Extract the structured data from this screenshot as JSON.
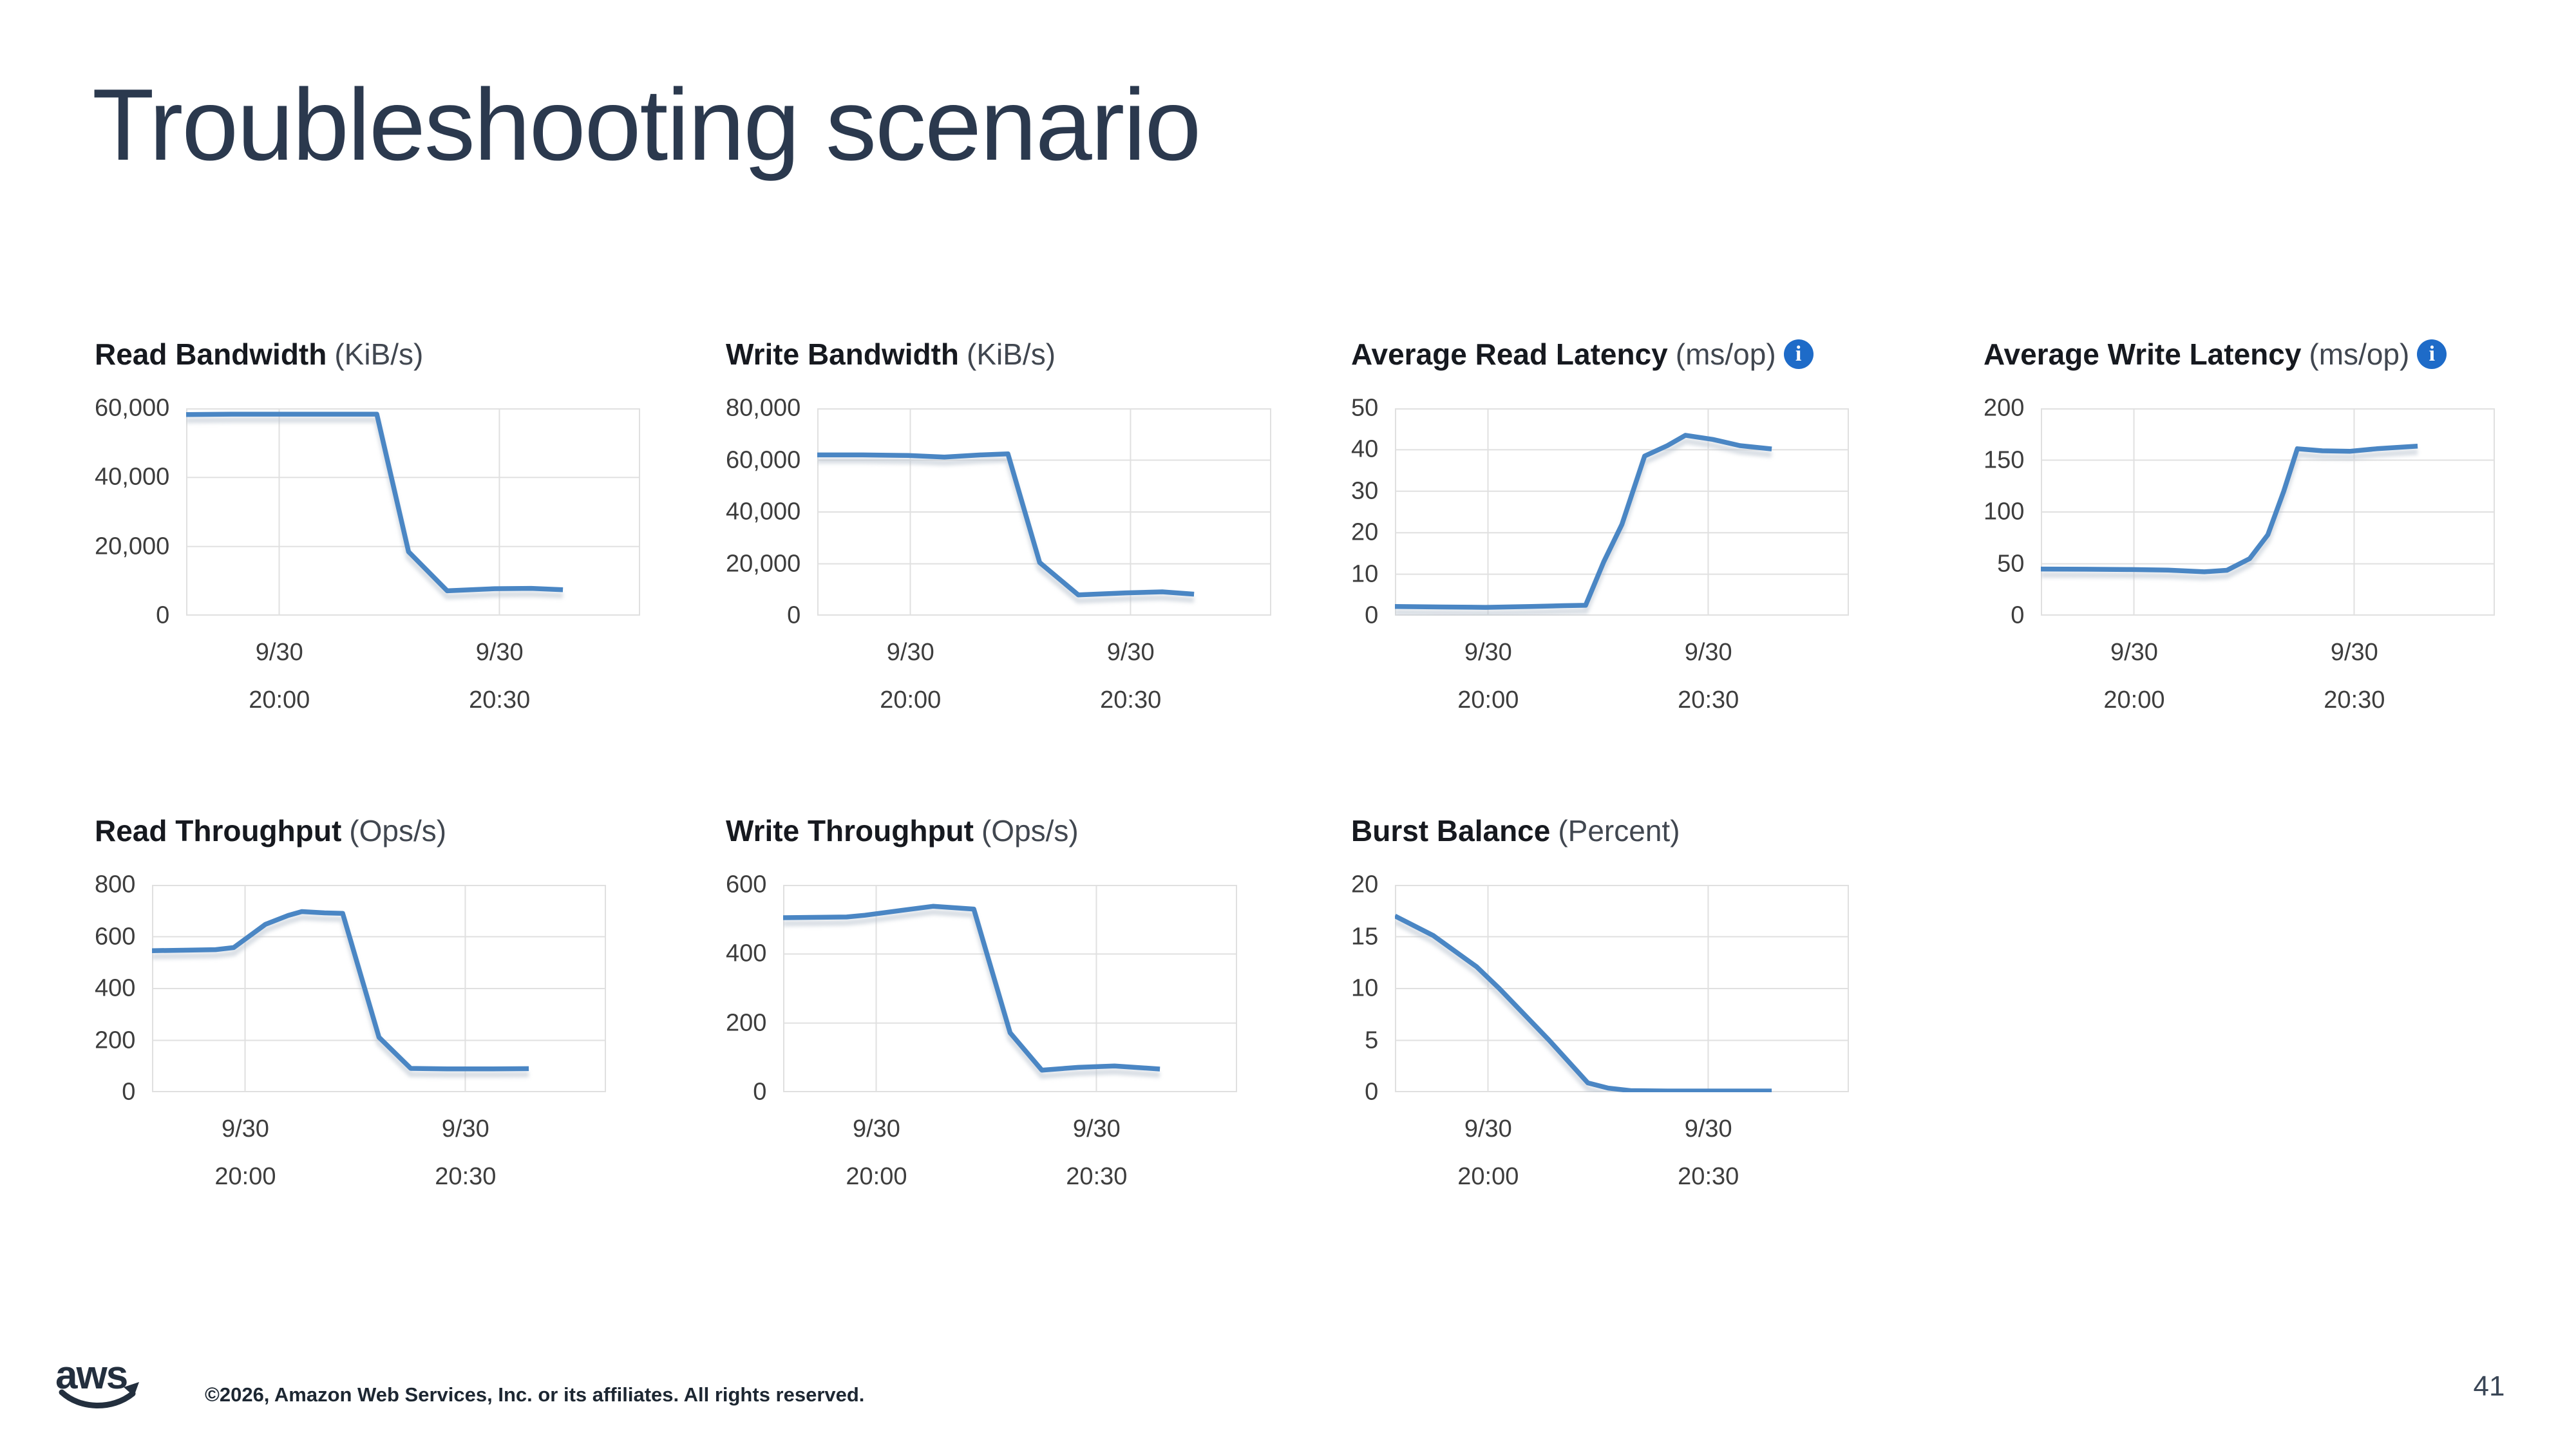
{
  "slide": {
    "title": "Troubleshooting scenario",
    "page_number": "41",
    "footer_copyright": "©2026, Amazon Web Services, Inc. or its affiliates. All rights reserved.",
    "logo_text": "aws"
  },
  "colors": {
    "line": "#4a86c4",
    "line_shadow": "#b9c3cf",
    "grid": "#e0e0e0",
    "chart_title": "#16191f",
    "chart_unit": "#414750",
    "axis_text": "#3d3d3d",
    "info_icon_bg": "#1e6bc8",
    "slide_title": "#2b394e",
    "brand_navy": "#232f3e"
  },
  "icons": {
    "info": "i"
  },
  "chart_data": [
    {
      "type": "line",
      "title": "Read Bandwidth",
      "unit": "(KiB/s)",
      "has_info_icon": false,
      "ylim": [
        0,
        60000
      ],
      "yticks": [
        0,
        20000,
        40000,
        60000
      ],
      "ytick_labels": [
        "0",
        "20,000",
        "40,000",
        "60,000"
      ],
      "xticks": [
        {
          "pos": 0.205,
          "line1": "9/30",
          "line2": "20:00"
        },
        {
          "pos": 0.69,
          "line1": "9/30",
          "line2": "20:30"
        }
      ],
      "grid": true,
      "legend": "none",
      "points": [
        [
          0,
          58200
        ],
        [
          0.1,
          58300
        ],
        [
          0.2,
          58300
        ],
        [
          0.3,
          58300
        ],
        [
          0.42,
          58300
        ],
        [
          0.49,
          18500
        ],
        [
          0.575,
          7200
        ],
        [
          0.68,
          7800
        ],
        [
          0.76,
          7900
        ],
        [
          0.83,
          7500
        ]
      ]
    },
    {
      "type": "line",
      "title": "Write Bandwidth",
      "unit": "(KiB/s)",
      "has_info_icon": false,
      "ylim": [
        0,
        80000
      ],
      "yticks": [
        0,
        20000,
        40000,
        60000,
        80000
      ],
      "ytick_labels": [
        "0",
        "20,000",
        "40,000",
        "60,000",
        "80,000"
      ],
      "xticks": [
        {
          "pos": 0.205,
          "line1": "9/30",
          "line2": "20:00"
        },
        {
          "pos": 0.69,
          "line1": "9/30",
          "line2": "20:30"
        }
      ],
      "grid": true,
      "legend": "none",
      "points": [
        [
          0,
          62000
        ],
        [
          0.1,
          62000
        ],
        [
          0.2,
          61800
        ],
        [
          0.28,
          61200
        ],
        [
          0.36,
          62000
        ],
        [
          0.42,
          62400
        ],
        [
          0.49,
          20500
        ],
        [
          0.575,
          8000
        ],
        [
          0.68,
          8800
        ],
        [
          0.76,
          9200
        ],
        [
          0.83,
          8300
        ]
      ]
    },
    {
      "type": "line",
      "title": "Average Read Latency",
      "unit": "(ms/op)",
      "has_info_icon": true,
      "ylim": [
        0,
        50
      ],
      "yticks": [
        0,
        10,
        20,
        30,
        40,
        50
      ],
      "ytick_labels": [
        "0",
        "10",
        "20",
        "30",
        "40",
        "50"
      ],
      "xticks": [
        {
          "pos": 0.205,
          "line1": "9/30",
          "line2": "20:00"
        },
        {
          "pos": 0.69,
          "line1": "9/30",
          "line2": "20:30"
        }
      ],
      "grid": true,
      "legend": "none",
      "points": [
        [
          0,
          2.2
        ],
        [
          0.1,
          2.1
        ],
        [
          0.2,
          2.0
        ],
        [
          0.3,
          2.2
        ],
        [
          0.37,
          2.4
        ],
        [
          0.42,
          2.5
        ],
        [
          0.46,
          13
        ],
        [
          0.5,
          22
        ],
        [
          0.55,
          38.5
        ],
        [
          0.6,
          41
        ],
        [
          0.64,
          43.5
        ],
        [
          0.7,
          42.5
        ],
        [
          0.76,
          41
        ],
        [
          0.83,
          40.2
        ]
      ]
    },
    {
      "type": "line",
      "title": "Average Write Latency",
      "unit": "(ms/op)",
      "has_info_icon": true,
      "ylim": [
        0,
        200
      ],
      "yticks": [
        0,
        50,
        100,
        150,
        200
      ],
      "ytick_labels": [
        "0",
        "50",
        "100",
        "150",
        "200"
      ],
      "xticks": [
        {
          "pos": 0.205,
          "line1": "9/30",
          "line2": "20:00"
        },
        {
          "pos": 0.69,
          "line1": "9/30",
          "line2": "20:30"
        }
      ],
      "grid": true,
      "legend": "none",
      "points": [
        [
          0,
          45
        ],
        [
          0.1,
          44.8
        ],
        [
          0.2,
          44.5
        ],
        [
          0.28,
          44
        ],
        [
          0.36,
          42.3
        ],
        [
          0.41,
          43.8
        ],
        [
          0.46,
          55
        ],
        [
          0.5,
          78
        ],
        [
          0.535,
          120
        ],
        [
          0.565,
          161
        ],
        [
          0.62,
          159
        ],
        [
          0.68,
          158.5
        ],
        [
          0.74,
          161
        ],
        [
          0.83,
          163.5
        ]
      ]
    },
    {
      "type": "line",
      "title": "Read Throughput",
      "unit": "(Ops/s)",
      "has_info_icon": false,
      "ylim": [
        0,
        800
      ],
      "yticks": [
        0,
        200,
        400,
        600,
        800
      ],
      "ytick_labels": [
        "0",
        "200",
        "400",
        "600",
        "800"
      ],
      "xticks": [
        {
          "pos": 0.205,
          "line1": "9/30",
          "line2": "20:00"
        },
        {
          "pos": 0.69,
          "line1": "9/30",
          "line2": "20:30"
        }
      ],
      "grid": true,
      "legend": "none",
      "points": [
        [
          0,
          546
        ],
        [
          0.08,
          548
        ],
        [
          0.14,
          550
        ],
        [
          0.18,
          558
        ],
        [
          0.25,
          648
        ],
        [
          0.3,
          682
        ],
        [
          0.33,
          697
        ],
        [
          0.38,
          692
        ],
        [
          0.42,
          690
        ],
        [
          0.5,
          212
        ],
        [
          0.57,
          92
        ],
        [
          0.65,
          90
        ],
        [
          0.75,
          90
        ],
        [
          0.83,
          91
        ]
      ]
    },
    {
      "type": "line",
      "title": "Write Throughput",
      "unit": "(Ops/s)",
      "has_info_icon": false,
      "ylim": [
        0,
        600
      ],
      "yticks": [
        0,
        200,
        400,
        600
      ],
      "ytick_labels": [
        "0",
        "200",
        "400",
        "600"
      ],
      "xticks": [
        {
          "pos": 0.205,
          "line1": "9/30",
          "line2": "20:00"
        },
        {
          "pos": 0.69,
          "line1": "9/30",
          "line2": "20:30"
        }
      ],
      "grid": true,
      "legend": "none",
      "points": [
        [
          0,
          505
        ],
        [
          0.08,
          506
        ],
        [
          0.14,
          507
        ],
        [
          0.18,
          512
        ],
        [
          0.26,
          526
        ],
        [
          0.33,
          538
        ],
        [
          0.42,
          530
        ],
        [
          0.5,
          172
        ],
        [
          0.57,
          64
        ],
        [
          0.65,
          72
        ],
        [
          0.73,
          76
        ],
        [
          0.83,
          67
        ]
      ]
    },
    {
      "type": "line",
      "title": "Burst Balance",
      "unit": "(Percent)",
      "has_info_icon": false,
      "ylim": [
        0,
        20
      ],
      "yticks": [
        0,
        5,
        10,
        15,
        20
      ],
      "ytick_labels": [
        "0",
        "5",
        "10",
        "15",
        "20"
      ],
      "xticks": [
        {
          "pos": 0.205,
          "line1": "9/30",
          "line2": "20:00"
        },
        {
          "pos": 0.69,
          "line1": "9/30",
          "line2": "20:30"
        }
      ],
      "grid": true,
      "legend": "none",
      "points": [
        [
          0,
          17
        ],
        [
          0.085,
          15.1
        ],
        [
          0.18,
          12.1
        ],
        [
          0.23,
          10
        ],
        [
          0.34,
          5
        ],
        [
          0.425,
          0.9
        ],
        [
          0.47,
          0.4
        ],
        [
          0.52,
          0.15
        ],
        [
          0.6,
          0.12
        ],
        [
          0.7,
          0.12
        ],
        [
          0.83,
          0.12
        ]
      ]
    }
  ]
}
